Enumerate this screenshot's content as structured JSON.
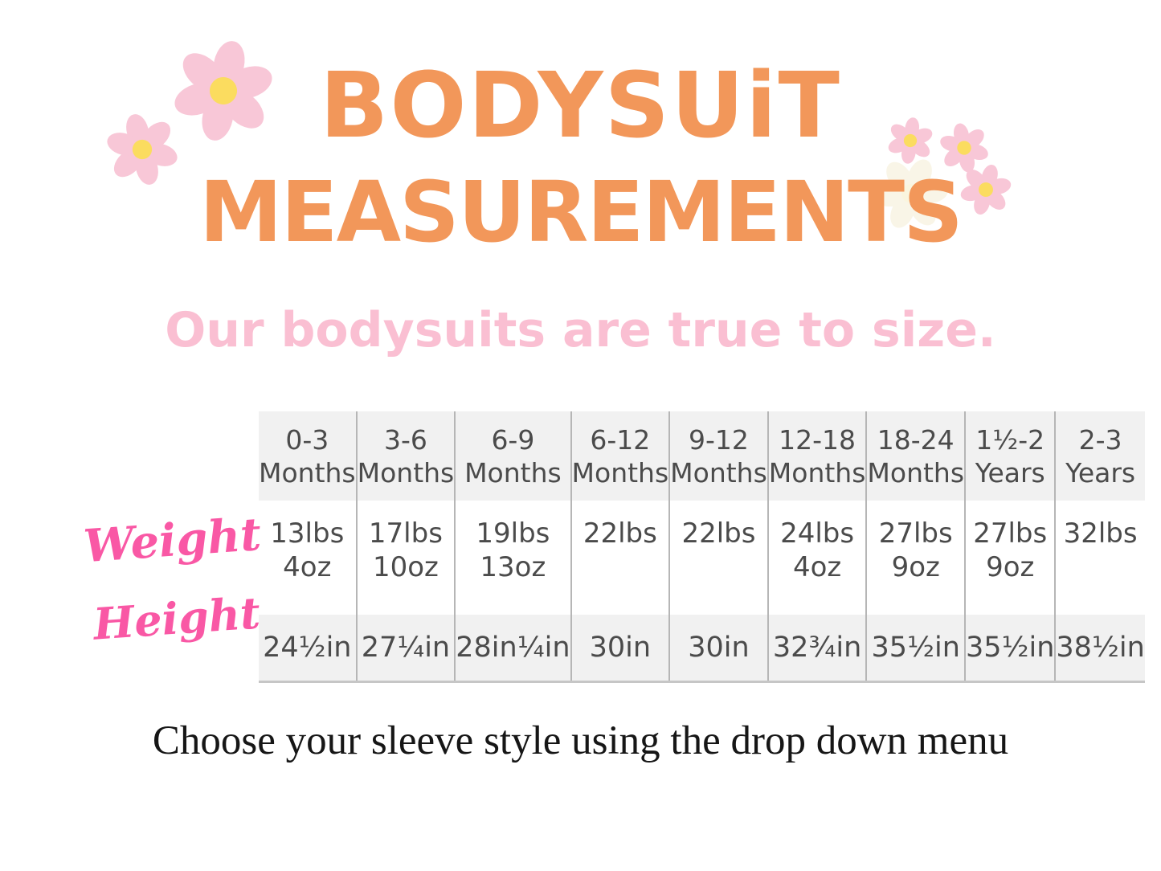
{
  "title": {
    "line1": "BODYSUiT",
    "line2": "MEASUREMENTS"
  },
  "subtitle": "Our bodysuits are true to size.",
  "footer_note": "Choose your sleeve style using the drop down menu",
  "icons": {
    "decoration": "pink-daisy-flower-icon"
  },
  "colors": {
    "title_orange": "#F2975A",
    "subtitle_pink": "#FABFD2",
    "script_pink": "#F958A5",
    "petal_pink": "#F8C7D7",
    "flower_center_yellow": "#FBDC5F",
    "table_stripe_gray": "#F1F1F1",
    "table_line_gray": "#B6B6B6",
    "table_text_gray": "#4B4B4B",
    "footer_black": "#161616"
  },
  "chart_data": {
    "type": "table",
    "title": "Bodysuit Measurements",
    "columns": [
      "0-3 Months",
      "3-6 Months",
      "6-9 Months",
      "6-12 Months",
      "9-12 Months",
      "12-18 Months",
      "18-24 Months",
      "1½-2 Years",
      "2-3 Years"
    ],
    "rows": [
      {
        "label": "Weight",
        "values": [
          "13lbs 4oz",
          "17lbs 10oz",
          "19lbs 13oz",
          "22lbs",
          "22lbs",
          "24lbs 4oz",
          "27lbs 9oz",
          "27lbs 9oz",
          "32lbs"
        ]
      },
      {
        "label": "Height",
        "values": [
          "24½in",
          "27¼in",
          "28in¼in",
          "30in",
          "30in",
          "32¾in",
          "35½in",
          "35½in",
          "38½in"
        ]
      }
    ],
    "layout": {
      "row_labels_position": "left",
      "striped_rows": [
        "header",
        "Height"
      ],
      "grid": "vertical-only"
    }
  }
}
